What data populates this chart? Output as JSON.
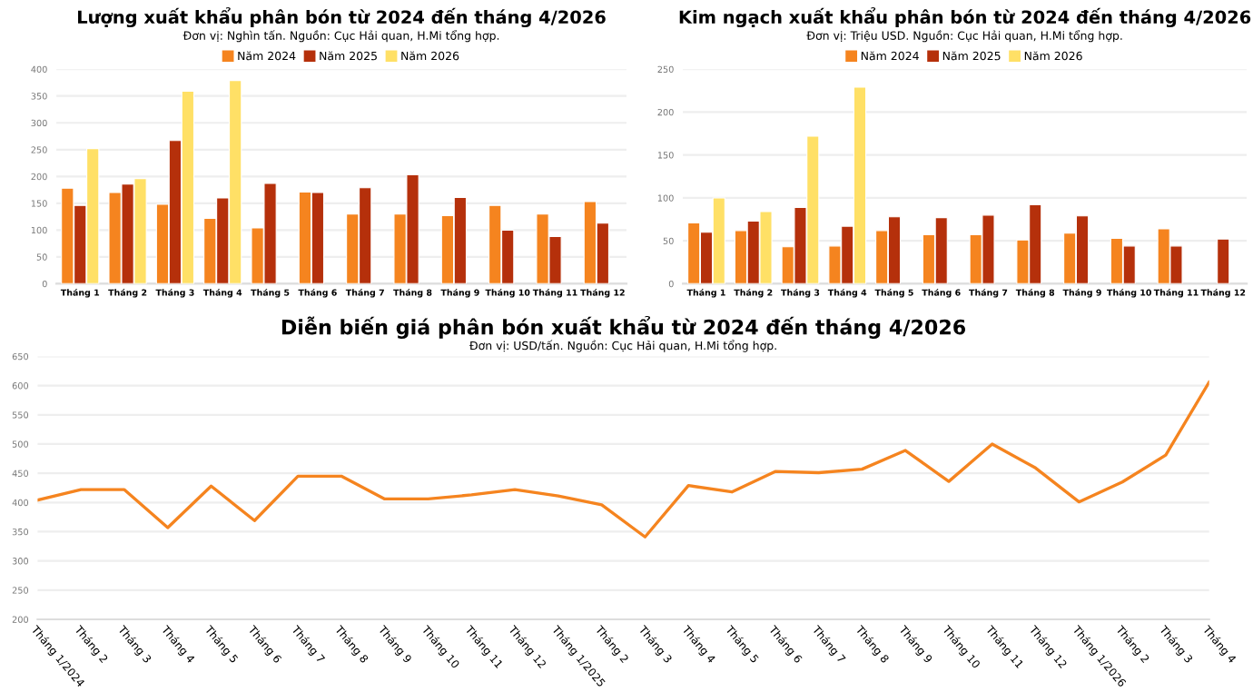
{
  "chart_data": [
    {
      "type": "bar",
      "title": "Lượng xuất khẩu phân bón từ 2024 đến tháng 4/2026",
      "subtitle": "Đơn vị: Nghìn tấn. Nguồn: Cục Hải quan, H.Mi tổng hợp.",
      "categories": [
        "Tháng 1",
        "Tháng 2",
        "Tháng 3",
        "Tháng 4",
        "Tháng 5",
        "Tháng 6",
        "Tháng 7",
        "Tháng 8",
        "Tháng 9",
        "Tháng 10",
        "Tháng 11",
        "Tháng 12"
      ],
      "series": [
        {
          "name": "Năm 2024",
          "color": "#f5841f",
          "values": [
            178,
            170,
            148,
            122,
            104,
            171,
            130,
            130,
            127,
            146,
            130,
            153
          ]
        },
        {
          "name": "Năm 2025",
          "color": "#b5300b",
          "values": [
            146,
            186,
            267,
            160,
            187,
            170,
            179,
            203,
            161,
            100,
            88,
            113
          ]
        },
        {
          "name": "Năm 2026",
          "color": "#ffe066",
          "values": [
            252,
            196,
            359,
            379,
            null,
            null,
            null,
            null,
            null,
            null,
            null,
            null
          ]
        }
      ],
      "ylim": [
        0,
        400
      ],
      "yticks": [
        0,
        50,
        100,
        150,
        200,
        250,
        300,
        350,
        400
      ],
      "grid": "y",
      "legend": "top"
    },
    {
      "type": "bar",
      "title": "Kim ngạch xuất khẩu phân bón từ 2024 đến tháng 4/2026",
      "subtitle": "Đơn vị: Triệu USD. Nguồn: Cục Hải quan, H.Mi tổng hợp.",
      "categories": [
        "Tháng 1",
        "Tháng 2",
        "Tháng 3",
        "Tháng 4",
        "Tháng 5",
        "Tháng 6",
        "Tháng 7",
        "Tháng 8",
        "Tháng 9",
        "Tháng 10",
        "Tháng 11",
        "Tháng 12"
      ],
      "series": [
        {
          "name": "Năm 2024",
          "color": "#f5841f",
          "values": [
            71,
            62,
            43,
            44,
            62,
            57,
            57,
            51,
            59,
            53,
            64,
            null
          ]
        },
        {
          "name": "Năm 2025",
          "color": "#b5300b",
          "values": [
            60,
            73,
            89,
            67,
            78,
            77,
            80,
            92,
            79,
            44,
            44,
            52
          ]
        },
        {
          "name": "Năm 2026",
          "color": "#ffe066",
          "values": [
            100,
            84,
            172,
            229,
            null,
            null,
            null,
            null,
            null,
            null,
            null,
            null
          ]
        }
      ],
      "ylim": [
        0,
        250
      ],
      "yticks": [
        0,
        50,
        100,
        150,
        200,
        250
      ],
      "grid": "y",
      "legend": "top"
    },
    {
      "type": "line",
      "title": "Diễn biến giá phân bón xuất khẩu từ 2024 đến tháng 4/2026",
      "subtitle": "Đơn vị: USD/tấn. Nguồn: Cục Hải quan, H.Mi tổng hợp.",
      "categories": [
        "Tháng 1/2024",
        "Tháng 2",
        "Tháng 3",
        "Tháng 4",
        "Tháng 5",
        "Tháng 6",
        "Tháng 7",
        "Tháng 8",
        "Tháng 9",
        "Tháng 10",
        "Tháng 11",
        "Tháng 12",
        "Tháng 1/2025",
        "Tháng 2",
        "Tháng 3",
        "Tháng 4",
        "Tháng 5",
        "Tháng 6",
        "Tháng 7",
        "Tháng 8",
        "Tháng 9",
        "Tháng 10",
        "Tháng 11",
        "Tháng 12",
        "Tháng 1/2026",
        "Tháng 2",
        "Tháng 3",
        "Tháng 4"
      ],
      "series": [
        {
          "color": "#f5841f",
          "values": [
            404,
            422,
            422,
            357,
            428,
            369,
            445,
            445,
            406,
            406,
            413,
            422,
            411,
            396,
            341,
            429,
            418,
            453,
            451,
            457,
            489,
            436,
            500,
            459,
            401,
            435,
            481,
            606
          ]
        }
      ],
      "ylim": [
        200,
        650
      ],
      "yticks": [
        200,
        250,
        300,
        350,
        400,
        450,
        500,
        550,
        600,
        650
      ],
      "grid": "y",
      "marker": "none",
      "line_style": "solid"
    }
  ]
}
